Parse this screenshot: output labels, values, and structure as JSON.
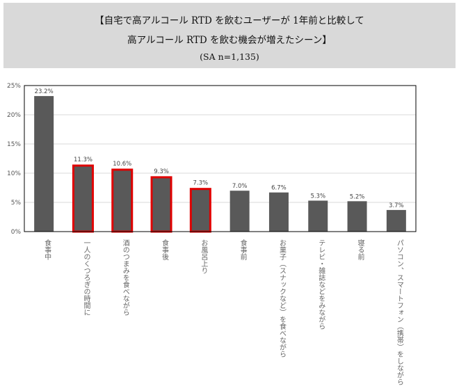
{
  "title": {
    "line1": "【自宅で高アルコール RTD を飲むユーザーが 1年前と比較して",
    "line2": "高アルコール RTD を飲む機会が増えたシーン】",
    "line3": "(SA n=1,135)"
  },
  "colors": {
    "bar": "#595959",
    "highlight": "#e00000",
    "title_bg": "#d9d9d9",
    "grid": "#d9d9d9"
  },
  "chart_data": {
    "type": "bar",
    "categories": [
      "食事中",
      "一人のくつろぎの時間に",
      "酒のつまみを食べながら",
      "食事後",
      "お風呂上り",
      "食事前",
      "お菓子（スナックなど）を食べながら",
      "テレビ・雑誌などをみながら",
      "寝る前",
      "パソコン、スマートフォン（携帯）をしながら"
    ],
    "values": [
      23.2,
      11.3,
      10.6,
      9.3,
      7.3,
      7.0,
      6.7,
      5.3,
      5.2,
      3.7
    ],
    "data_labels": [
      "23.2%",
      "11.3%",
      "10.6%",
      "9.3%",
      "7.3%",
      "7.0%",
      "6.7%",
      "5.3%",
      "5.2%",
      "3.7%"
    ],
    "highlighted": [
      false,
      true,
      true,
      true,
      true,
      false,
      false,
      false,
      false,
      false
    ],
    "ylim": [
      0,
      25
    ],
    "yticks": [
      0,
      5,
      10,
      15,
      20,
      25
    ],
    "ytick_labels": [
      "0%",
      "5%",
      "10%",
      "15%",
      "20%",
      "25%"
    ],
    "grid": true
  }
}
